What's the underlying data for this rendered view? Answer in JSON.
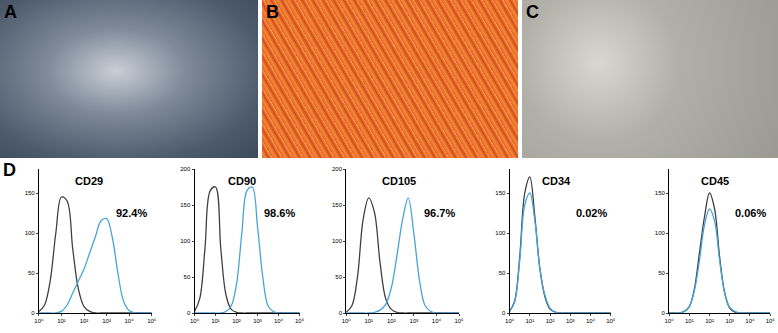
{
  "image_panels": [
    {
      "label": "A"
    },
    {
      "label": "B"
    },
    {
      "label": "C"
    }
  ],
  "chart_panel": {
    "label": "D"
  },
  "chart_data": [
    {
      "type": "line",
      "title": "CD29",
      "annotations": [
        "92.4%"
      ],
      "log": "x",
      "x": [
        1,
        1.78,
        3.16,
        5.62,
        10,
        17.8,
        31.6,
        56.2,
        100,
        178,
        316,
        562,
        1000,
        1778,
        3162,
        5623,
        10000,
        17783,
        31623,
        56234,
        100000
      ],
      "series": [
        {
          "color": "#404040",
          "values": [
            2,
            10,
            40,
            100,
            145,
            140,
            80,
            30,
            8,
            2,
            0,
            0,
            0,
            0,
            0,
            0,
            0,
            0,
            0,
            0,
            0
          ]
        },
        {
          "color": "#4aa3d8",
          "values": [
            0,
            0,
            0,
            0,
            2,
            10,
            25,
            40,
            55,
            75,
            95,
            115,
            118,
            95,
            50,
            15,
            3,
            0,
            0,
            0,
            0
          ]
        }
      ],
      "xlim": [
        1,
        100000
      ],
      "xticks": [
        {
          "value": 1,
          "label": "10⁰"
        },
        {
          "value": 10,
          "label": "10¹"
        },
        {
          "value": 100,
          "label": "10²"
        },
        {
          "value": 1000,
          "label": "10³"
        },
        {
          "value": 10000,
          "label": "10⁴"
        },
        {
          "value": 100000,
          "label": "10⁵"
        }
      ],
      "ylim": [
        0,
        180
      ],
      "yticks": [
        0,
        50,
        100,
        150
      ]
    },
    {
      "type": "line",
      "title": "CD90",
      "annotations": [
        "98.6%"
      ],
      "log": "x",
      "x": [
        1,
        1.78,
        3.16,
        5.62,
        10,
        17.8,
        31.6,
        56.2,
        100,
        178,
        316,
        562,
        1000,
        1778,
        3162,
        5623,
        10000,
        17783,
        31623,
        56234,
        100000
      ],
      "series": [
        {
          "color": "#404040",
          "values": [
            2,
            20,
            90,
            170,
            175,
            90,
            25,
            5,
            1,
            0,
            0,
            0,
            0,
            0,
            0,
            0,
            0,
            0,
            0,
            0,
            0
          ]
        },
        {
          "color": "#4aa3d8",
          "values": [
            0,
            0,
            0,
            0,
            0,
            0,
            2,
            10,
            40,
            110,
            170,
            175,
            120,
            50,
            10,
            2,
            0,
            0,
            0,
            0,
            0
          ]
        }
      ],
      "xlim": [
        1,
        100000
      ],
      "xticks": [
        {
          "value": 1,
          "label": "10⁰"
        },
        {
          "value": 10,
          "label": "10¹"
        },
        {
          "value": 100,
          "label": "10²"
        },
        {
          "value": 1000,
          "label": "10³"
        },
        {
          "value": 10000,
          "label": "10⁴"
        },
        {
          "value": 100000,
          "label": "10⁵"
        }
      ],
      "ylim": [
        0,
        200
      ],
      "yticks": [
        0,
        50,
        100,
        150,
        200
      ]
    },
    {
      "type": "line",
      "title": "CD105",
      "annotations": [
        "96.7%"
      ],
      "log": "x",
      "x": [
        1,
        1.78,
        3.16,
        5.62,
        10,
        17.8,
        31.6,
        56.2,
        100,
        178,
        316,
        562,
        1000,
        1778,
        3162,
        5623,
        10000,
        17783,
        31623,
        56234,
        100000
      ],
      "series": [
        {
          "color": "#404040",
          "values": [
            1,
            10,
            50,
            130,
            160,
            140,
            70,
            20,
            5,
            1,
            0,
            0,
            0,
            0,
            0,
            0,
            0,
            0,
            0,
            0,
            0
          ]
        },
        {
          "color": "#4aa3d8",
          "values": [
            0,
            0,
            0,
            0,
            0,
            1,
            4,
            12,
            35,
            80,
            130,
            160,
            110,
            45,
            10,
            2,
            0,
            0,
            0,
            0,
            0
          ]
        }
      ],
      "xlim": [
        1,
        100000
      ],
      "xticks": [
        {
          "value": 1,
          "label": "10⁰"
        },
        {
          "value": 10,
          "label": "10¹"
        },
        {
          "value": 100,
          "label": "10²"
        },
        {
          "value": 1000,
          "label": "10³"
        },
        {
          "value": 10000,
          "label": "10⁴"
        },
        {
          "value": 100000,
          "label": "10⁵"
        }
      ],
      "ylim": [
        0,
        200
      ],
      "yticks": [
        0,
        50,
        100,
        150,
        200
      ]
    },
    {
      "type": "line",
      "title": "CD34",
      "annotations": [
        "0.02%"
      ],
      "log": "x",
      "x": [
        1,
        1.78,
        3.16,
        5.62,
        10,
        17.8,
        31.6,
        56.2,
        100,
        178,
        316,
        562,
        1000,
        1778,
        3162,
        5623,
        10000,
        17783,
        31623,
        56234,
        100000
      ],
      "series": [
        {
          "color": "#404040",
          "values": [
            2,
            15,
            70,
            150,
            170,
            120,
            55,
            20,
            5,
            1,
            0,
            0,
            0,
            0,
            0,
            0,
            0,
            0,
            0,
            0,
            0
          ]
        },
        {
          "color": "#4aa3d8",
          "values": [
            2,
            14,
            65,
            135,
            150,
            115,
            55,
            22,
            6,
            1,
            0,
            0,
            0,
            0,
            0,
            0,
            0,
            0,
            0,
            0,
            0
          ]
        }
      ],
      "xlim": [
        1,
        100000
      ],
      "xticks": [
        {
          "value": 1,
          "label": "10⁰"
        },
        {
          "value": 10,
          "label": "10¹"
        },
        {
          "value": 100,
          "label": "10²"
        },
        {
          "value": 1000,
          "label": "10³"
        },
        {
          "value": 10000,
          "label": "10⁴"
        },
        {
          "value": 100000,
          "label": "10⁵"
        }
      ],
      "ylim": [
        0,
        180
      ],
      "yticks": [
        0,
        50,
        100,
        150
      ]
    },
    {
      "type": "line",
      "title": "CD45",
      "annotations": [
        "0.06%"
      ],
      "log": "x",
      "x": [
        1,
        1.78,
        3.16,
        5.62,
        10,
        17.8,
        31.6,
        56.2,
        100,
        178,
        316,
        562,
        1000,
        1778,
        3162,
        5623,
        10000,
        17783,
        31623,
        56234,
        100000
      ],
      "series": [
        {
          "color": "#404040",
          "values": [
            0,
            0,
            0,
            2,
            8,
            30,
            75,
            120,
            150,
            130,
            70,
            25,
            6,
            1,
            0,
            0,
            0,
            0,
            0,
            0,
            0
          ]
        },
        {
          "color": "#4aa3d8",
          "values": [
            0,
            0,
            0,
            2,
            8,
            28,
            65,
            110,
            130,
            115,
            65,
            25,
            7,
            2,
            0,
            0,
            0,
            0,
            0,
            0,
            0
          ]
        }
      ],
      "xlim": [
        1,
        100000
      ],
      "xticks": [
        {
          "value": 1,
          "label": "10⁰"
        },
        {
          "value": 10,
          "label": "10¹"
        },
        {
          "value": 100,
          "label": "10²"
        },
        {
          "value": 1000,
          "label": "10³"
        },
        {
          "value": 10000,
          "label": "10⁴"
        },
        {
          "value": 100000,
          "label": "10⁵"
        }
      ],
      "ylim": [
        0,
        180
      ],
      "yticks": [
        0,
        50,
        100,
        150
      ]
    }
  ]
}
